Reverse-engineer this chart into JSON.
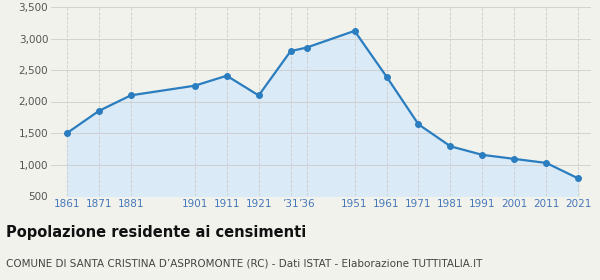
{
  "years": [
    1861,
    1871,
    1881,
    1901,
    1911,
    1921,
    1931,
    1936,
    1951,
    1961,
    1971,
    1981,
    1991,
    2001,
    2011,
    2021
  ],
  "population": [
    1499,
    1851,
    2098,
    2251,
    2409,
    2096,
    2800,
    2856,
    3121,
    2395,
    1638,
    1289,
    1153,
    1089,
    1025,
    779
  ],
  "x_tick_positions": [
    1861,
    1871,
    1881,
    1901,
    1911,
    1921,
    1931,
    1936,
    1951,
    1961,
    1971,
    1981,
    1991,
    2001,
    2011,
    2021
  ],
  "x_tick_labels": [
    "1861",
    "1871",
    "1881",
    "1901",
    "1911",
    "1921",
    "’31",
    "’36",
    "1951",
    "1961",
    "1971",
    "1981",
    "1991",
    "2001",
    "2011",
    "2021"
  ],
  "ylim": [
    500,
    3500
  ],
  "yticks": [
    500,
    1000,
    1500,
    2000,
    2500,
    3000,
    3500
  ],
  "xlim_left": 1856,
  "xlim_right": 2025,
  "line_color": "#2a7dbf",
  "fill_color": "#daeaf7",
  "marker_color": "#2a7dbf",
  "bg_color": "#f2f2ec",
  "grid_color_x": "#cccccc",
  "grid_color_y": "#cccccc",
  "x_label_color": "#4477bb",
  "y_label_color": "#555555",
  "title": "Popolazione residente ai censimenti",
  "subtitle": "COMUNE DI SANTA CRISTINA D’ASPROMONTE (RC) - Dati ISTAT - Elaborazione TUTTITALIA.IT",
  "title_fontsize": 10.5,
  "subtitle_fontsize": 7.5,
  "tick_fontsize": 7.5
}
